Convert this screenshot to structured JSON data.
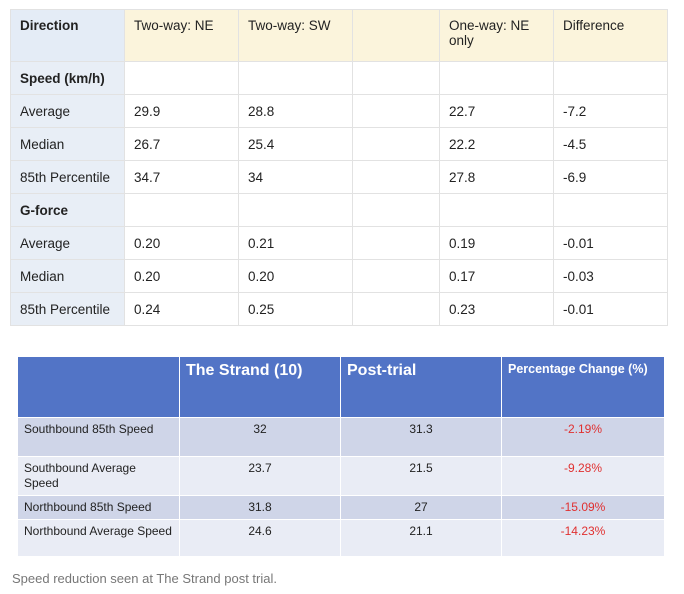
{
  "table1": {
    "headers": [
      "Direction",
      "Two-way: NE",
      "Two-way: SW",
      "",
      "One-way: NE only",
      "Difference"
    ],
    "speed_section": "Speed (km/h)",
    "speed_rows": [
      {
        "label": "Average",
        "v": [
          "29.9",
          "28.8",
          "",
          "22.7",
          "-7.2"
        ]
      },
      {
        "label": "Median",
        "v": [
          "26.7",
          "25.4",
          "",
          "22.2",
          "-4.5"
        ]
      },
      {
        "label": "85th Percentile",
        "v": [
          "34.7",
          "34",
          "",
          "27.8",
          "-6.9"
        ]
      }
    ],
    "gforce_section": "G-force",
    "gforce_rows": [
      {
        "label": "Average",
        "v": [
          "0.20",
          "0.21",
          "",
          "0.19",
          "-0.01"
        ]
      },
      {
        "label": "Median",
        "v": [
          "0.20",
          "0.20",
          "",
          "0.17",
          "-0.03"
        ]
      },
      {
        "label": "85th Percentile",
        "v": [
          "0.24",
          "0.25",
          "",
          "0.23",
          "-0.01"
        ]
      }
    ]
  },
  "table2": {
    "headers": [
      "",
      "The Strand (10)",
      "Post-trial",
      "Percentage Change (%)"
    ],
    "rows": [
      {
        "label": "Southbound 85th Speed",
        "v": [
          "32",
          "31.3",
          "-2.19%"
        ]
      },
      {
        "label": "Southbound Average Speed",
        "v": [
          "23.7",
          "21.5",
          "-9.28%"
        ]
      },
      {
        "label": "Northbound 85th Speed",
        "v": [
          "31.8",
          "27",
          "-15.09%"
        ]
      },
      {
        "label": "Northbound Average Speed",
        "v": [
          "24.6",
          "21.1",
          "-14.23%"
        ]
      }
    ]
  },
  "caption": "Speed reduction seen at The Strand post trial."
}
